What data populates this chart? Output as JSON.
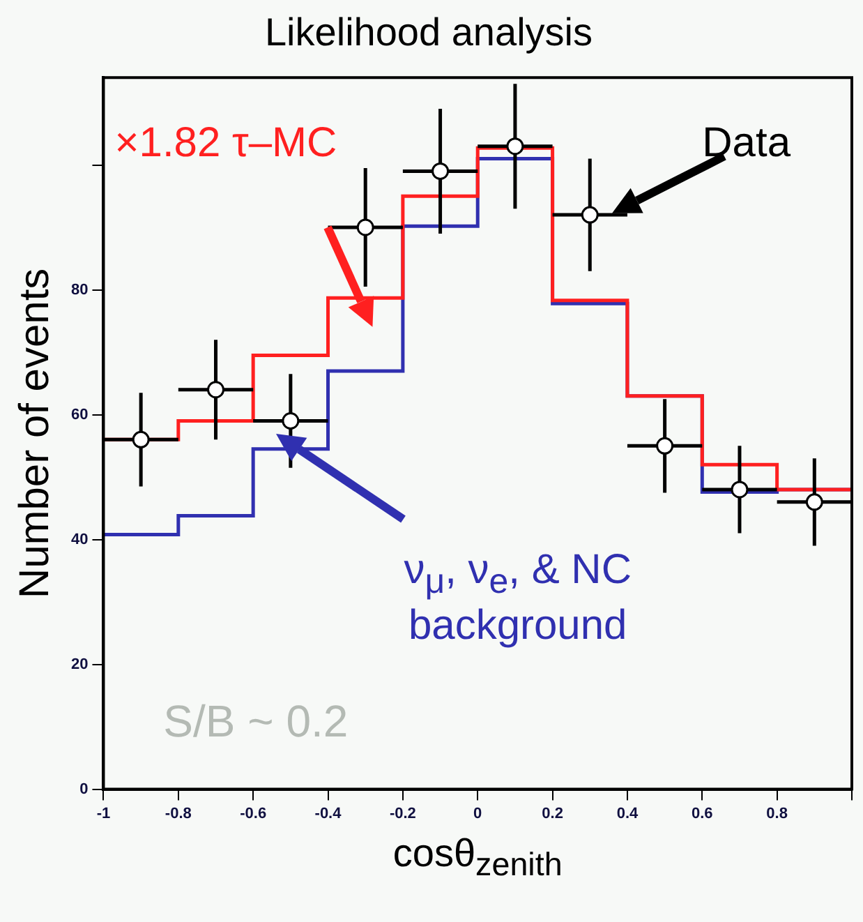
{
  "chart_data": {
    "type": "histogram",
    "title": "Likelihood analysis",
    "xlabel": "cosθ$_{zenith}$",
    "ylabel": "Number of events",
    "bins": [
      -1,
      -0.8,
      -0.6,
      -0.4,
      -0.2,
      0,
      0.2,
      0.4,
      0.6,
      0.8,
      1
    ],
    "series": [
      {
        "name": "×1.82 τ–MC",
        "color": "#ff2020",
        "values": [
          56,
          59,
          69.5,
          78.7,
          95,
          102.7,
          78.3,
          63,
          52,
          48
        ]
      },
      {
        "name": "ν$_{μ}$, ν$_{e}$, & NC background",
        "color": "#3030b0",
        "values": [
          40.8,
          43.8,
          54.5,
          67,
          90.2,
          101,
          77.8,
          63,
          47.6,
          48
        ]
      },
      {
        "name": "Data",
        "type": "scatter",
        "color": "#000000",
        "x": [
          -0.9,
          -0.7,
          -0.5,
          -0.3,
          -0.1,
          0.1,
          0.3,
          0.5,
          0.7,
          0.9
        ],
        "values": [
          56,
          64,
          59,
          90,
          99,
          103,
          92,
          55,
          48,
          46
        ],
        "errors": [
          7.5,
          8,
          7.5,
          9.5,
          10,
          10,
          9,
          7.5,
          7,
          7
        ],
        "xerrors": [
          0.1,
          0.1,
          0.1,
          0.1,
          0.1,
          0.1,
          0.1,
          0.1,
          0.1,
          0.1
        ]
      }
    ],
    "annotations": [
      "S/B ~ 0.2"
    ],
    "xlim": [
      -1,
      1
    ],
    "xticks": [
      -1,
      -0.8,
      -0.6,
      -0.4,
      -0.2,
      0,
      0.2,
      0.4,
      0.6,
      0.8,
      {
        "value": 1,
        "label": null
      }
    ],
    "ylim": [
      0,
      114
    ],
    "yticks": [
      0,
      20,
      40,
      60,
      80,
      {
        "value": 100,
        "label": null
      }
    ],
    "grid": false,
    "legend": false,
    "marker": "circle"
  }
}
